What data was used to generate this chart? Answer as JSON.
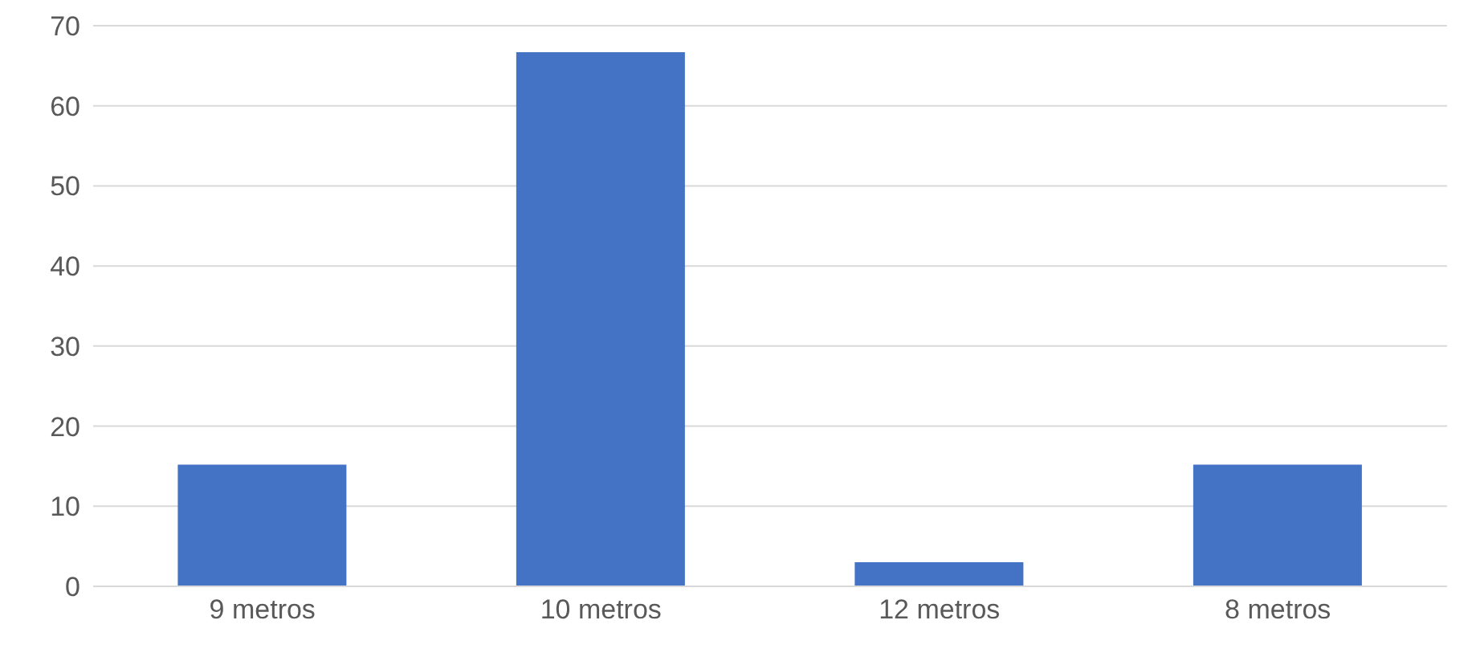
{
  "chart_data": {
    "type": "bar",
    "categories": [
      "9 metros",
      "10 metros",
      "12 metros",
      "8 metros"
    ],
    "values": [
      15.2,
      66.7,
      3,
      15.2
    ],
    "color": "#4472c4",
    "ylim": [
      0,
      70
    ],
    "yticks": [
      0,
      10,
      20,
      30,
      40,
      50,
      60,
      70
    ],
    "grid": "y"
  }
}
